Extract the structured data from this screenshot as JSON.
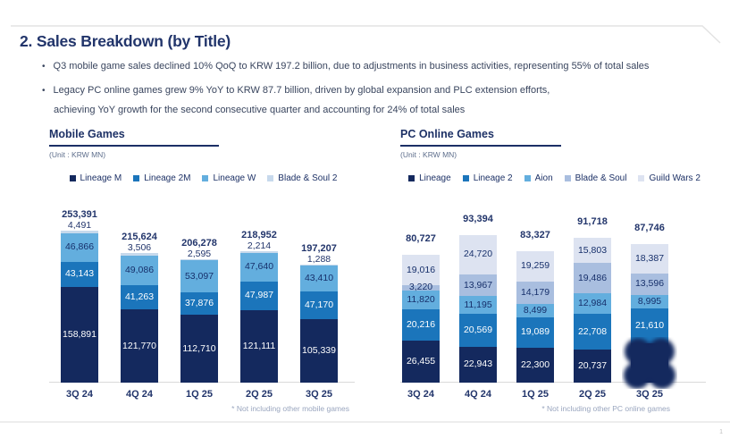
{
  "slide": {
    "title": "2. Sales Breakdown (by Title)",
    "bullets": [
      {
        "text": "Q3 mobile game sales declined 10% QoQ to KRW 197.2 billion, due to adjustments in business activities, representing 55% of total sales"
      },
      {
        "text": "Legacy PC online games grew 9% YoY to KRW 87.7 billion, driven by global expansion and PLC extension efforts,",
        "continuation": "achieving YoY growth for the second consecutive quarter and accounting for 24% of total sales"
      }
    ],
    "page_number": "1"
  },
  "colors": {
    "title_navy": "#22356B",
    "bar_navy": "#14295E",
    "bar_blue": "#1B75BB",
    "bar_light_blue": "#63AEDE",
    "bar_pale_blue": "#C7D9EC",
    "bar_periwinkle": "#A9BEDF",
    "bar_lavender": "#DDE3F1"
  },
  "chart_data": [
    {
      "type": "bar",
      "stacked": true,
      "title": "Mobile Games",
      "unit": "(Unit : KRW MN)",
      "footnote": "* Not including other mobile games",
      "legend_position": "top",
      "categories": [
        "3Q 24",
        "4Q 24",
        "1Q 25",
        "2Q 25",
        "3Q 25"
      ],
      "totals": [
        253391,
        215624,
        206278,
        218952,
        197207
      ],
      "series": [
        {
          "name": "Lineage M",
          "color": "#14295E",
          "label_color": "#FFFFFF",
          "values": [
            158891,
            121770,
            112710,
            121111,
            105339
          ]
        },
        {
          "name": "Lineage 2M",
          "color": "#1B75BB",
          "label_color": "#FFFFFF",
          "values": [
            43143,
            41263,
            37876,
            47987,
            47170
          ]
        },
        {
          "name": "Lineage W",
          "color": "#63AEDE",
          "label_color": "#17306B",
          "values": [
            46866,
            49086,
            53097,
            47640,
            43410
          ]
        },
        {
          "name": "Blade & Soul 2",
          "color": "#C7D9EC",
          "label_color": "#17306B",
          "values": [
            4491,
            3506,
            2595,
            2214,
            1288
          ]
        }
      ]
    },
    {
      "type": "bar",
      "stacked": true,
      "title": "PC Online Games",
      "unit": "(Unit : KRW MN)",
      "footnote": "* Not including other PC online games",
      "legend_position": "top",
      "categories": [
        "3Q 24",
        "4Q 24",
        "1Q 25",
        "2Q 25",
        "3Q 25"
      ],
      "totals": [
        80727,
        93394,
        83327,
        91718,
        87746
      ],
      "series": [
        {
          "name": "Lineage",
          "color": "#14295E",
          "label_color": "#FFFFFF",
          "values": [
            26455,
            22943,
            22300,
            20737,
            null
          ],
          "note": "3Q 25 value obscured by scribble in source image"
        },
        {
          "name": "Lineage 2",
          "color": "#1B75BB",
          "label_color": "#FFFFFF",
          "values": [
            20216,
            20569,
            19089,
            22708,
            21610
          ]
        },
        {
          "name": "Aion",
          "color": "#63AEDE",
          "label_color": "#17306B",
          "values": [
            11820,
            11195,
            8499,
            12984,
            8995
          ]
        },
        {
          "name": "Blade & Soul",
          "color": "#A9BEDF",
          "label_color": "#17306B",
          "values": [
            3220,
            13967,
            14179,
            19486,
            13596
          ]
        },
        {
          "name": "Guild Wars 2",
          "color": "#DDE3F1",
          "label_color": "#17306B",
          "values": [
            19016,
            24720,
            19259,
            15803,
            18387
          ]
        }
      ]
    }
  ]
}
